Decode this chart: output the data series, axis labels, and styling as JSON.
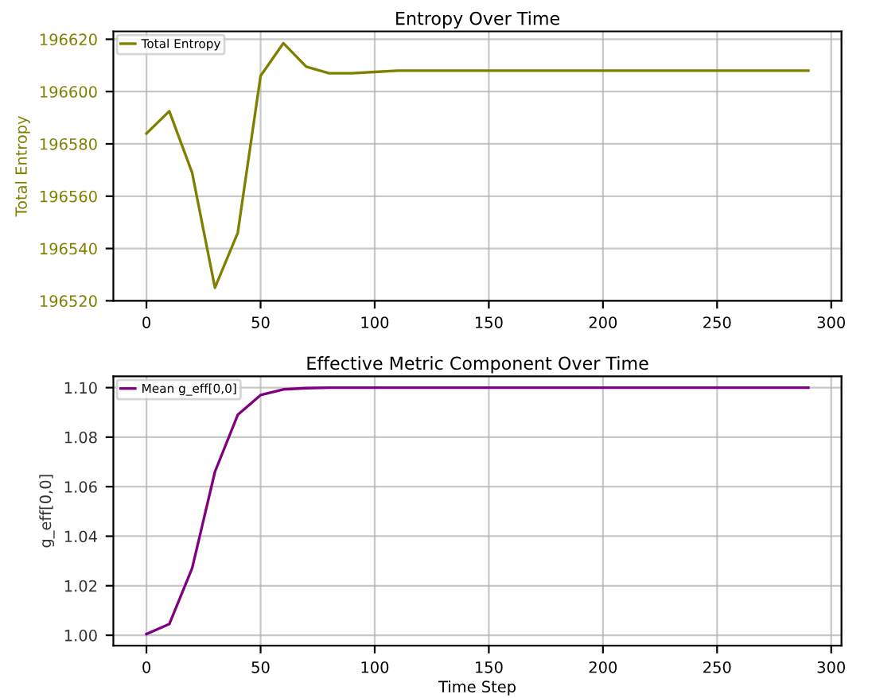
{
  "chart_data": [
    {
      "type": "line",
      "title": "Entropy Over Time",
      "ylabel": "Total Entropy",
      "x": [
        0,
        10,
        20,
        30,
        40,
        50,
        60,
        70,
        80,
        90,
        100,
        110,
        120,
        130,
        140,
        150,
        160,
        170,
        180,
        190,
        200,
        210,
        220,
        230,
        240,
        250,
        260,
        270,
        280,
        290
      ],
      "series": [
        {
          "name": "Total Entropy",
          "color": "#808000",
          "values": [
            196584,
            196592.5,
            196569,
            196525,
            196546,
            196606,
            196618.5,
            196609.5,
            196607,
            196607,
            196607.5,
            196608,
            196608,
            196608,
            196608,
            196608,
            196608,
            196608,
            196608,
            196608,
            196608,
            196608,
            196608,
            196608,
            196608,
            196608,
            196608,
            196608,
            196608,
            196608
          ]
        }
      ],
      "xlim": [
        -14.5,
        304.5
      ],
      "xticks": [
        0,
        50,
        100,
        150,
        200,
        250,
        300
      ],
      "ylim": [
        196520,
        196623
      ],
      "yticks": [
        196520,
        196540,
        196560,
        196580,
        196600,
        196620
      ],
      "grid": true,
      "legend": "top left"
    },
    {
      "type": "line",
      "title": "Effective Metric Component Over Time",
      "xlabel": "Time Step",
      "ylabel": "g_eff[0,0]",
      "x": [
        0,
        10,
        20,
        30,
        40,
        50,
        60,
        70,
        80,
        90,
        100,
        110,
        120,
        130,
        140,
        150,
        160,
        170,
        180,
        190,
        200,
        210,
        220,
        230,
        240,
        250,
        260,
        270,
        280,
        290
      ],
      "series": [
        {
          "name": "Mean g_eff[0,0]",
          "color": "#800080",
          "values": [
            1.0005,
            1.0045,
            1.027,
            1.066,
            1.089,
            1.097,
            1.0993,
            1.0998,
            1.1,
            1.1,
            1.1,
            1.1,
            1.1,
            1.1,
            1.1,
            1.1,
            1.1,
            1.1,
            1.1,
            1.1,
            1.1,
            1.1,
            1.1,
            1.1,
            1.1,
            1.1,
            1.1,
            1.1,
            1.1,
            1.1
          ]
        }
      ],
      "xlim": [
        -14.5,
        304.5
      ],
      "xticks": [
        0,
        50,
        100,
        150,
        200,
        250,
        300
      ],
      "ylim": [
        0.9958,
        1.1046
      ],
      "yticks": [
        {
          "value": 1.0,
          "label": "1.00"
        },
        {
          "value": 1.02,
          "label": "1.02"
        },
        {
          "value": 1.04,
          "label": "1.04"
        },
        {
          "value": 1.06,
          "label": "1.06"
        },
        {
          "value": 1.08,
          "label": "1.08"
        },
        {
          "value": 1.1,
          "label": "1.10"
        }
      ],
      "grid": true,
      "legend": "top left"
    }
  ]
}
